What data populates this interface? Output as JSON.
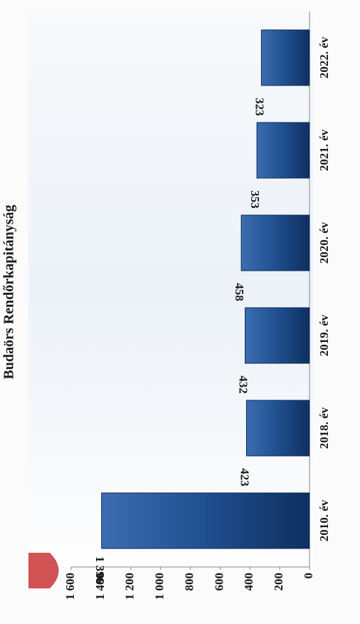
{
  "chart_data": {
    "type": "bar",
    "title": "Budaörs Rendőrkapitányság",
    "categories": [
      "2010. év",
      "2018. év",
      "2019. év",
      "2020. év",
      "2021. év",
      "2022. év"
    ],
    "values": [
      1396,
      423,
      432,
      458,
      353,
      323
    ],
    "value_labels": [
      "1 396",
      "423",
      "432",
      "458",
      "353",
      "323"
    ],
    "color": "#1f4f8f",
    "ylim": [
      0,
      1600
    ],
    "yticks": [
      0,
      200,
      400,
      600,
      800,
      {
        "value": 1000,
        "label": "1 000"
      },
      {
        "value": 1200,
        "label": "1 200"
      },
      {
        "value": 1400,
        "label": "1 400"
      },
      {
        "value": 1600,
        "label": "1 600"
      }
    ]
  }
}
